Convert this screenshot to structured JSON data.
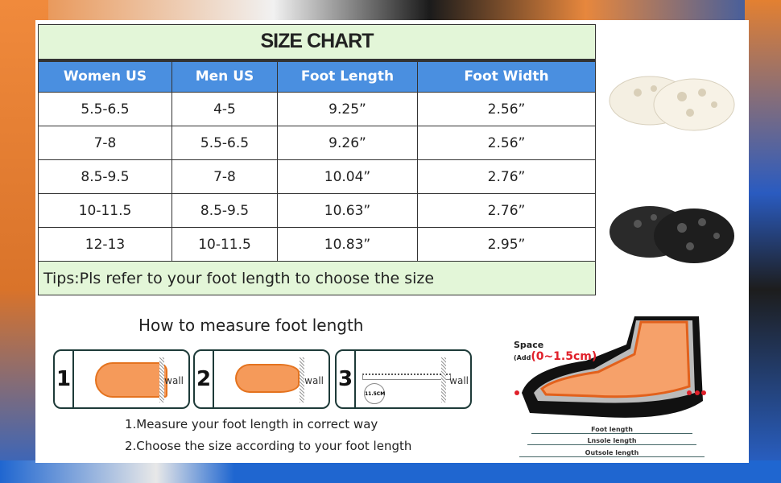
{
  "size_chart": {
    "title": "SIZE CHART",
    "headers": [
      "Women US",
      "Men US",
      "Foot Length",
      "Foot Width"
    ],
    "rows": [
      [
        "5.5-6.5",
        "4-5",
        "9.25”",
        "2.56”"
      ],
      [
        "7-8",
        "5.5-6.5",
        "9.26”",
        "2.56”"
      ],
      [
        "8.5-9.5",
        "7-8",
        "10.04”",
        "2.76”"
      ],
      [
        "10-11.5",
        "8.5-9.5",
        "10.63”",
        "2.76”"
      ],
      [
        "12-13",
        "10-11.5",
        "10.83”",
        "2.95”"
      ]
    ],
    "tips": "Tips:Pls refer to your foot length to choose the size"
  },
  "measure": {
    "title": "How to measure foot length",
    "steps": [
      {
        "num": "1",
        "wall": "wall"
      },
      {
        "num": "2",
        "wall": "wall"
      },
      {
        "num": "3",
        "wall": "wall",
        "ruler": "11.5CM"
      }
    ],
    "instructions": [
      "1.Measure your foot length in correct way",
      "2.Choose the size according to your foot length"
    ]
  },
  "diagram": {
    "space_label": "Space",
    "add_prefix": "(Add",
    "add_value": "(0~1.5cm)",
    "foot_length": "Foot length",
    "insole_length": "Lnsole length",
    "outsole_length": "Outsole length"
  },
  "colors": {
    "header_blue": "#4a8fe0",
    "title_green": "#e3f6d8",
    "accent_red": "#e0202a"
  }
}
